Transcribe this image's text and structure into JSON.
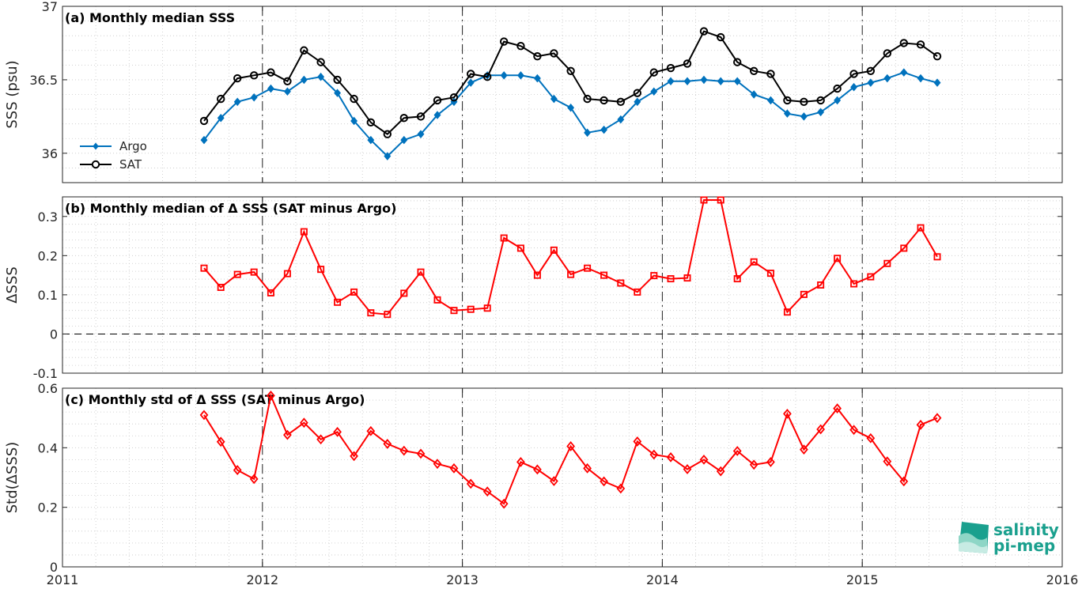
{
  "chart_data": [
    {
      "type": "line",
      "title": "(a) Monthly median SSS",
      "ylabel": "SSS (psu)",
      "xlim": [
        2011,
        2016
      ],
      "ylim": [
        35.8,
        37
      ],
      "yticks": [
        36,
        36.5,
        37
      ],
      "xticks": [
        2011,
        2012,
        2013,
        2014,
        2015,
        2016
      ],
      "x": [
        2011.708,
        2011.792,
        2011.875,
        2011.958,
        2012.042,
        2012.125,
        2012.208,
        2012.292,
        2012.375,
        2012.458,
        2012.542,
        2012.625,
        2012.708,
        2012.792,
        2012.875,
        2012.958,
        2013.042,
        2013.125,
        2013.208,
        2013.292,
        2013.375,
        2013.458,
        2013.542,
        2013.625,
        2013.708,
        2013.792,
        2013.875,
        2013.958,
        2014.042,
        2014.125,
        2014.208,
        2014.292,
        2014.375,
        2014.458,
        2014.542,
        2014.625,
        2014.708,
        2014.792,
        2014.875,
        2014.958,
        2015.042,
        2015.125,
        2015.208,
        2015.292,
        2015.375
      ],
      "series": [
        {
          "name": "Argo",
          "color": "#0072bd",
          "marker": "diamond-filled",
          "values": [
            36.09,
            36.24,
            36.35,
            36.38,
            36.44,
            36.42,
            36.5,
            36.52,
            36.41,
            36.22,
            36.09,
            35.98,
            36.09,
            36.13,
            36.26,
            36.35,
            36.48,
            36.53,
            36.53,
            36.53,
            36.51,
            36.37,
            36.31,
            36.14,
            36.16,
            36.23,
            36.35,
            36.42,
            36.49,
            36.49,
            36.5,
            36.49,
            36.49,
            36.4,
            36.36,
            36.27,
            36.25,
            36.28,
            36.36,
            36.45,
            36.48,
            36.51,
            36.55,
            36.51,
            36.48
          ]
        },
        {
          "name": "SAT",
          "color": "#000000",
          "marker": "circle-open",
          "values": [
            36.22,
            36.37,
            36.51,
            36.53,
            36.55,
            36.49,
            36.7,
            36.62,
            36.5,
            36.37,
            36.21,
            36.13,
            36.24,
            36.25,
            36.36,
            36.38,
            36.54,
            36.52,
            36.76,
            36.73,
            36.66,
            36.68,
            36.56,
            36.37,
            36.36,
            36.35,
            36.41,
            36.55,
            36.58,
            36.61,
            36.83,
            36.79,
            36.62,
            36.56,
            36.54,
            36.36,
            36.35,
            36.36,
            36.44,
            36.54,
            36.56,
            36.68,
            36.75,
            36.74,
            36.66
          ]
        }
      ],
      "legend": "bottom-left",
      "grid": true
    },
    {
      "type": "line",
      "title": "(b) Monthly median of Δ SSS (SAT minus Argo)",
      "ylabel": "ΔSSS",
      "xlim": [
        2011,
        2016
      ],
      "ylim": [
        -0.1,
        0.35
      ],
      "yticks": [
        -0.1,
        0,
        0.1,
        0.2,
        0.3
      ],
      "x": [
        2011.708,
        2011.792,
        2011.875,
        2011.958,
        2012.042,
        2012.125,
        2012.208,
        2012.292,
        2012.375,
        2012.458,
        2012.542,
        2012.625,
        2012.708,
        2012.792,
        2012.875,
        2012.958,
        2013.042,
        2013.125,
        2013.208,
        2013.292,
        2013.375,
        2013.458,
        2013.542,
        2013.625,
        2013.708,
        2013.792,
        2013.875,
        2013.958,
        2014.042,
        2014.125,
        2014.208,
        2014.292,
        2014.375,
        2014.458,
        2014.542,
        2014.625,
        2014.708,
        2014.792,
        2014.875,
        2014.958,
        2015.042,
        2015.125,
        2015.208,
        2015.292,
        2015.375
      ],
      "series": [
        {
          "color": "#ff0000",
          "marker": "square-open",
          "values": [
            0.168,
            0.119,
            0.152,
            0.158,
            0.105,
            0.154,
            0.261,
            0.165,
            0.081,
            0.107,
            0.054,
            0.05,
            0.104,
            0.158,
            0.087,
            0.06,
            0.063,
            0.066,
            0.245,
            0.219,
            0.15,
            0.214,
            0.152,
            0.168,
            0.15,
            0.13,
            0.107,
            0.149,
            0.141,
            0.143,
            0.342,
            0.342,
            0.141,
            0.184,
            0.155,
            0.056,
            0.101,
            0.125,
            0.193,
            0.128,
            0.146,
            0.18,
            0.219,
            0.271,
            0.197
          ]
        }
      ],
      "zero_line": 0,
      "grid": true
    },
    {
      "type": "line",
      "title": "(c) Monthly std of Δ SSS (SAT minus Argo)",
      "ylabel": "Std(ΔSSS)",
      "xlim": [
        2011,
        2016
      ],
      "ylim": [
        0,
        0.6
      ],
      "yticks": [
        0,
        0.2,
        0.4,
        0.6
      ],
      "xticks": [
        2011,
        2012,
        2013,
        2014,
        2015,
        2016
      ],
      "x": [
        2011.708,
        2011.792,
        2011.875,
        2011.958,
        2012.042,
        2012.125,
        2012.208,
        2012.292,
        2012.375,
        2012.458,
        2012.542,
        2012.625,
        2012.708,
        2012.792,
        2012.875,
        2012.958,
        2013.042,
        2013.125,
        2013.208,
        2013.292,
        2013.375,
        2013.458,
        2013.542,
        2013.625,
        2013.708,
        2013.792,
        2013.875,
        2013.958,
        2014.042,
        2014.125,
        2014.208,
        2014.292,
        2014.375,
        2014.458,
        2014.542,
        2014.625,
        2014.708,
        2014.792,
        2014.875,
        2014.958,
        2015.042,
        2015.125,
        2015.208,
        2015.292,
        2015.375
      ],
      "series": [
        {
          "color": "#ff0000",
          "marker": "diamond-open",
          "values": [
            0.51,
            0.42,
            0.325,
            0.295,
            0.575,
            0.443,
            0.484,
            0.428,
            0.453,
            0.372,
            0.456,
            0.413,
            0.39,
            0.38,
            0.346,
            0.331,
            0.279,
            0.253,
            0.212,
            0.352,
            0.327,
            0.288,
            0.405,
            0.331,
            0.287,
            0.263,
            0.421,
            0.377,
            0.368,
            0.328,
            0.36,
            0.321,
            0.389,
            0.343,
            0.352,
            0.514,
            0.394,
            0.462,
            0.532,
            0.46,
            0.432,
            0.354,
            0.287,
            0.477,
            0.5
          ]
        }
      ],
      "grid": true
    }
  ],
  "logo": {
    "line1": "salinity",
    "line2": "pi-mep"
  }
}
